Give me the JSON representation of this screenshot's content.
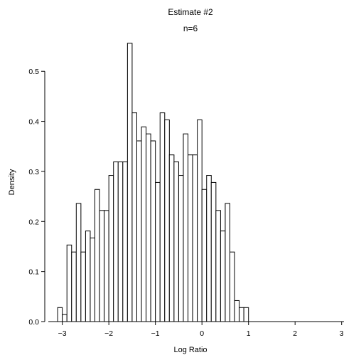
{
  "chart_data": {
    "type": "histogram",
    "title": "Estimate #2",
    "subtitle": "n=6",
    "xlabel": "Log Ratio",
    "ylabel": "Density",
    "xlim": [
      -3.3,
      3.05
    ],
    "ylim": [
      0,
      0.56
    ],
    "xticks": [
      -3,
      -2,
      -1,
      0,
      1,
      2,
      3
    ],
    "yticks": [
      0.0,
      0.1,
      0.2,
      0.3,
      0.4,
      0.5
    ],
    "xtick_labels": [
      "−3",
      "−2",
      "−1",
      "0",
      "1",
      "2",
      "3"
    ],
    "ytick_labels": [
      "0.0",
      "0.1",
      "0.2",
      "0.3",
      "0.4",
      "0.5"
    ],
    "bin_width": 0.1,
    "bins_start": [
      -3.1,
      -3.0,
      -2.9,
      -2.8,
      -2.7,
      -2.6,
      -2.5,
      -2.4,
      -2.3,
      -2.2,
      -2.1,
      -2.0,
      -1.9,
      -1.8,
      -1.7,
      -1.6,
      -1.5,
      -1.4,
      -1.3,
      -1.2,
      -1.1,
      -1.0,
      -0.9,
      -0.8,
      -0.7,
      -0.6,
      -0.5,
      -0.4,
      -0.3,
      -0.2,
      -0.1,
      0.0,
      0.1,
      0.2,
      0.3,
      0.4,
      0.5,
      0.6,
      0.7,
      0.8,
      0.9
    ],
    "values": [
      0.028,
      0.014,
      0.153,
      0.139,
      0.236,
      0.139,
      0.181,
      0.167,
      0.264,
      0.222,
      0.222,
      0.292,
      0.319,
      0.319,
      0.319,
      0.556,
      0.417,
      0.361,
      0.389,
      0.375,
      0.361,
      0.278,
      0.417,
      0.403,
      0.333,
      0.319,
      0.292,
      0.375,
      0.333,
      0.333,
      0.403,
      0.264,
      0.292,
      0.278,
      0.222,
      0.181,
      0.236,
      0.139,
      0.042,
      0.028,
      0.028
    ],
    "bar_fill": "#ffffff",
    "bar_stroke": "#000000",
    "grid": false,
    "legend": "none"
  }
}
